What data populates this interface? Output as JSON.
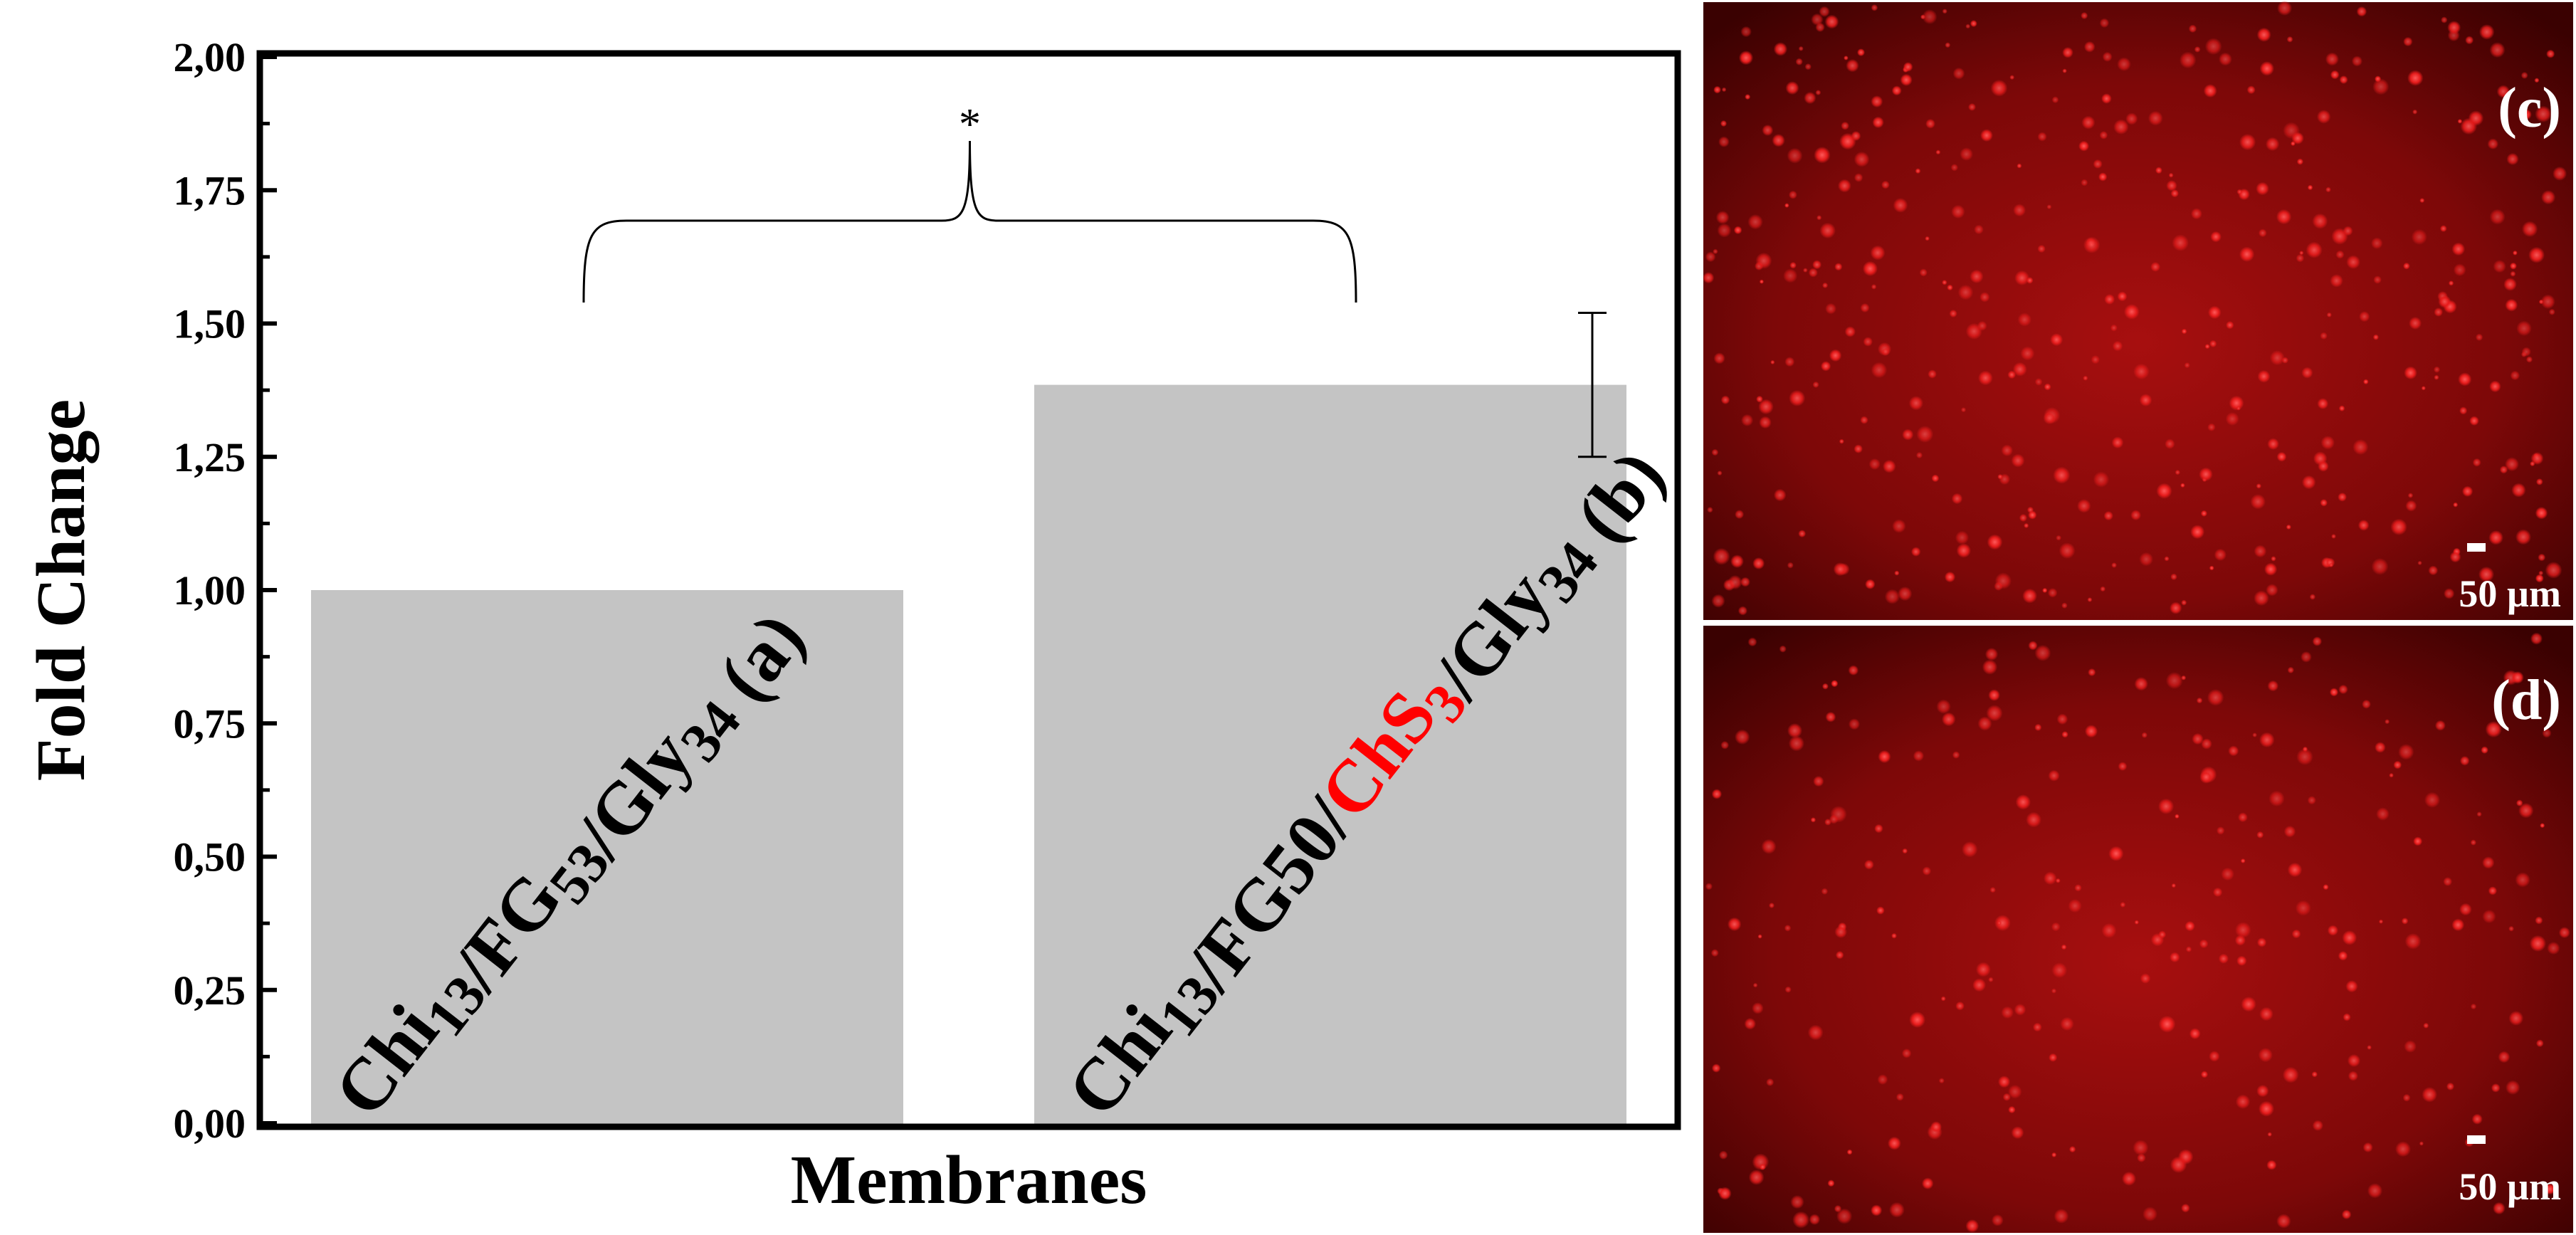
{
  "chart_data": {
    "type": "bar",
    "categories": [
      "Chi13/FG53/Gly34 (a)",
      "Chi13/FG50/ChS3/Gly34 (b)"
    ],
    "category_labels": [
      [
        {
          "t": "Chi",
          "sub": false
        },
        {
          "t": "13",
          "sub": true
        },
        {
          "t": "/FG",
          "sub": false
        },
        {
          "t": "53",
          "sub": true
        },
        {
          "t": "/Gly",
          "sub": false
        },
        {
          "t": "34",
          "sub": true
        },
        {
          "t": " (a)",
          "sub": false
        }
      ],
      [
        {
          "t": "Chi",
          "sub": false
        },
        {
          "t": "13",
          "sub": true
        },
        {
          "t": "/FG50/",
          "sub": false
        },
        {
          "t": "ChS",
          "sub": false,
          "highlight": true
        },
        {
          "t": "3",
          "sub": true,
          "highlight": true
        },
        {
          "t": "/Gly",
          "sub": false
        },
        {
          "t": "34",
          "sub": true
        },
        {
          "t": " (b)",
          "sub": false
        }
      ]
    ],
    "values": [
      1.0,
      1.385
    ],
    "error_low": [
      null,
      1.25
    ],
    "error_high": [
      null,
      1.52
    ],
    "ylabel": "Fold Change",
    "xlabel": "Membranes",
    "ylim": [
      0,
      2.0
    ],
    "yticks": [
      "0,00",
      "0,25",
      "0,50",
      "0,75",
      "1,00",
      "1,25",
      "1,50",
      "1,75",
      "2,00"
    ],
    "significance": {
      "label": "*",
      "between": [
        0,
        1
      ]
    },
    "colors": {
      "bar": "#c4c4c4",
      "highlight_text": "#ff0000",
      "axis": "#000000"
    },
    "grid": false,
    "legend": "none"
  },
  "panels": [
    {
      "label": "(c)",
      "scale_bar": "50 µm"
    },
    {
      "label": "(d)",
      "scale_bar": "50 µm"
    }
  ]
}
